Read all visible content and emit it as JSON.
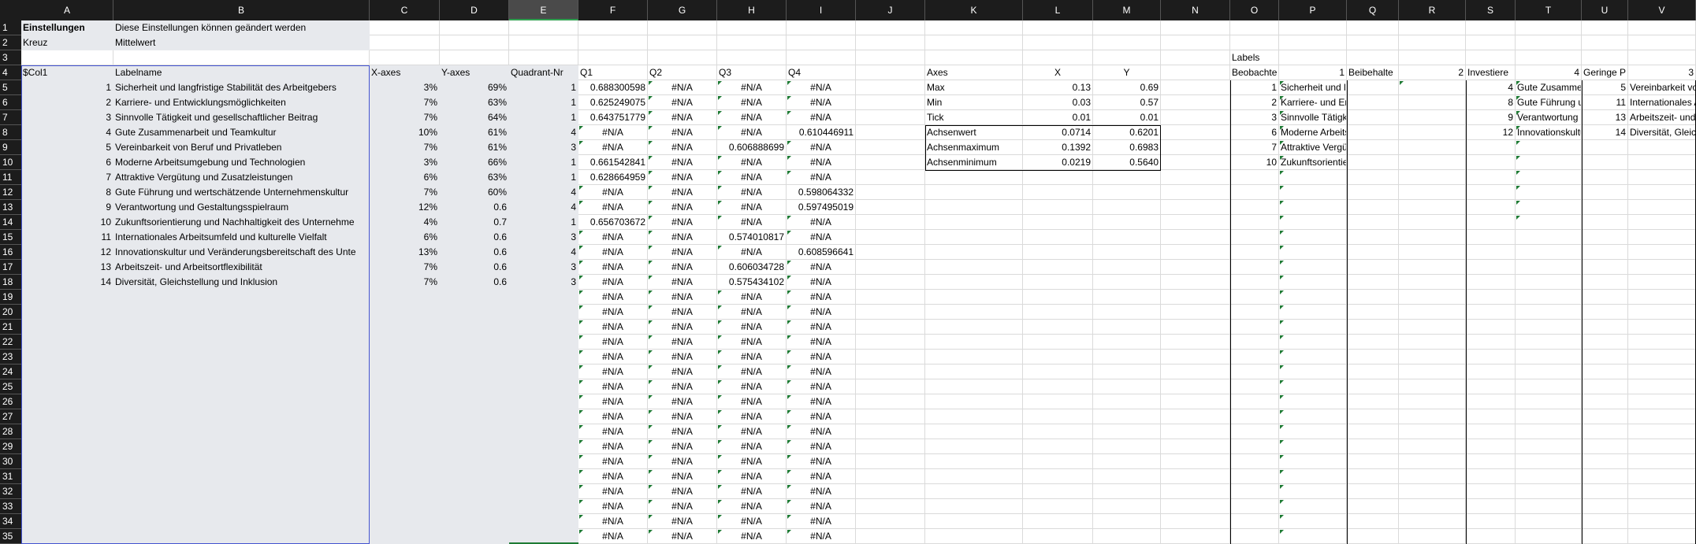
{
  "sheet": {
    "columns": [
      "A",
      "B",
      "C",
      "D",
      "E",
      "F",
      "G",
      "H",
      "I",
      "J",
      "K",
      "L",
      "M",
      "N",
      "O",
      "P",
      "Q",
      "R",
      "S",
      "T",
      "U",
      "V"
    ],
    "row_numbers": [
      1,
      2,
      3,
      4,
      5,
      6,
      7,
      8,
      9,
      10,
      11,
      12,
      13,
      14,
      15,
      16,
      17,
      18,
      19,
      20,
      21,
      22,
      23,
      24,
      25,
      26,
      27,
      28,
      29,
      30,
      31,
      32,
      33,
      34,
      35
    ],
    "rows": [
      {
        "A": "Einstellungen",
        "B": "Diese Einstellungen können geändert werden"
      },
      {
        "A": "Kreuz",
        "B": "Mittelwert"
      },
      {
        "O": "Labels"
      },
      {
        "A": "$Col1",
        "B": "Labelname",
        "C": "X-axes",
        "D": "Y-axes",
        "E": "Quadrant-Nr",
        "F": "Q1",
        "G": "Q2",
        "H": "Q3",
        "I": "Q4",
        "K": "Axes",
        "L": "X",
        "M": "Y",
        "O": "Beobachte",
        "P": "1",
        "Q": "Beibehalte",
        "R": "2",
        "S": "Investiere",
        "T": "4",
        "U": "Geringe P",
        "V": "3"
      },
      {
        "A": "1",
        "B": "Sicherheit und langfristige Stabilität des Arbeitgebers",
        "C": "3%",
        "D": "69%",
        "E": "1",
        "F": "0.688300598",
        "G": "#N/A",
        "H": "#N/A",
        "I": "#N/A",
        "K": "Max",
        "L": "0.13",
        "M": "0.69",
        "O": "1",
        "P": "Sicherheit und l",
        "S": "4",
        "T": "Gute Zusamme",
        "U": "5",
        "V": "Vereinbarkeit vo"
      },
      {
        "A": "2",
        "B": "Karriere- und Entwicklungsmöglichkeiten",
        "C": "7%",
        "D": "63%",
        "E": "1",
        "F": "0.625249075",
        "G": "#N/A",
        "H": "#N/A",
        "I": "#N/A",
        "K": "Min",
        "L": "0.03",
        "M": "0.57",
        "O": "2",
        "P": "Karriere- und Er",
        "S": "8",
        "T": "Gute Führung u",
        "U": "11",
        "V": "Internationales A"
      },
      {
        "A": "3",
        "B": "Sinnvolle Tätigkeit und gesellschaftlicher Beitrag",
        "C": "7%",
        "D": "64%",
        "E": "1",
        "F": "0.643751779",
        "G": "#N/A",
        "H": "#N/A",
        "I": "#N/A",
        "K": "Tick",
        "L": "0.01",
        "M": "0.01",
        "O": "3",
        "P": "Sinnvolle Tätigk",
        "S": "9",
        "T": "Verantwortung u",
        "U": "13",
        "V": "Arbeitszeit- und"
      },
      {
        "A": "4",
        "B": "Gute Zusammenarbeit und Teamkultur",
        "C": "10%",
        "D": "61%",
        "E": "4",
        "F": "#N/A",
        "G": "#N/A",
        "H": "#N/A",
        "I": "0.610446911",
        "K": "Achsenwert",
        "L": "0.0714",
        "M": "0.6201",
        "O": "6",
        "P": "Moderne Arbeits",
        "S": "12",
        "T": "Innovationskultu",
        "U": "14",
        "V": "Diversität, Gleich"
      },
      {
        "A": "5",
        "B": "Vereinbarkeit von Beruf und Privatleben",
        "C": "7%",
        "D": "61%",
        "E": "3",
        "F": "#N/A",
        "G": "#N/A",
        "H": "0.606888699",
        "I": "#N/A",
        "K": "Achsenmaximum",
        "L": "0.1392",
        "M": "0.6983",
        "O": "7",
        "P": "Attraktive Vergüt"
      },
      {
        "A": "6",
        "B": "Moderne Arbeitsumgebung und Technologien",
        "C": "3%",
        "D": "66%",
        "E": "1",
        "F": "0.661542841",
        "G": "#N/A",
        "H": "#N/A",
        "I": "#N/A",
        "K": "Achsenminimum",
        "L": "0.0219",
        "M": "0.5640",
        "O": "10",
        "P": "Zukunftsorientie"
      },
      {
        "A": "7",
        "B": "Attraktive Vergütung und Zusatzleistungen",
        "C": "6%",
        "D": "63%",
        "E": "1",
        "F": "0.628664959",
        "G": "#N/A",
        "H": "#N/A",
        "I": "#N/A"
      },
      {
        "A": "8",
        "B": "Gute Führung und wertschätzende Unternehmenskultur",
        "C": "7%",
        "D": "60%",
        "E": "4",
        "F": "#N/A",
        "G": "#N/A",
        "H": "#N/A",
        "I": "0.598064332"
      },
      {
        "A": "9",
        "B": "Verantwortung und Gestaltungsspielraum",
        "C": "12%",
        "D": "0.6",
        "E": "4",
        "F": "#N/A",
        "G": "#N/A",
        "H": "#N/A",
        "I": "0.597495019"
      },
      {
        "A": "10",
        "B": "Zukunftsorientierung und Nachhaltigkeit des Unternehme",
        "C": "4%",
        "D": "0.7",
        "E": "1",
        "F": "0.656703672",
        "G": "#N/A",
        "H": "#N/A",
        "I": "#N/A"
      },
      {
        "A": "11",
        "B": "Internationales Arbeitsumfeld und kulturelle Vielfalt",
        "C": "6%",
        "D": "0.6",
        "E": "3",
        "F": "#N/A",
        "G": "#N/A",
        "H": "0.574010817",
        "I": "#N/A"
      },
      {
        "A": "12",
        "B": "Innovationskultur und Veränderungsbereitschaft des Unte",
        "C": "13%",
        "D": "0.6",
        "E": "4",
        "F": "#N/A",
        "G": "#N/A",
        "H": "#N/A",
        "I": "0.608596641"
      },
      {
        "A": "13",
        "B": "Arbeitszeit- und Arbeitsortflexibilität",
        "C": "7%",
        "D": "0.6",
        "E": "3",
        "F": "#N/A",
        "G": "#N/A",
        "H": "0.606034728",
        "I": "#N/A"
      },
      {
        "A": "14",
        "B": "Diversität, Gleichstellung und Inklusion",
        "C": "7%",
        "D": "0.6",
        "E": "3",
        "F": "#N/A",
        "G": "#N/A",
        "H": "0.575434102",
        "I": "#N/A"
      },
      {
        "F": "#N/A",
        "G": "#N/A",
        "H": "#N/A",
        "I": "#N/A"
      },
      {
        "F": "#N/A",
        "G": "#N/A",
        "H": "#N/A",
        "I": "#N/A"
      },
      {
        "F": "#N/A",
        "G": "#N/A",
        "H": "#N/A",
        "I": "#N/A"
      },
      {
        "F": "#N/A",
        "G": "#N/A",
        "H": "#N/A",
        "I": "#N/A"
      },
      {
        "F": "#N/A",
        "G": "#N/A",
        "H": "#N/A",
        "I": "#N/A"
      },
      {
        "F": "#N/A",
        "G": "#N/A",
        "H": "#N/A",
        "I": "#N/A"
      },
      {
        "F": "#N/A",
        "G": "#N/A",
        "H": "#N/A",
        "I": "#N/A"
      },
      {
        "F": "#N/A",
        "G": "#N/A",
        "H": "#N/A",
        "I": "#N/A"
      },
      {
        "F": "#N/A",
        "G": "#N/A",
        "H": "#N/A",
        "I": "#N/A"
      },
      {
        "F": "#N/A",
        "G": "#N/A",
        "H": "#N/A",
        "I": "#N/A"
      },
      {
        "F": "#N/A",
        "G": "#N/A",
        "H": "#N/A",
        "I": "#N/A"
      },
      {
        "F": "#N/A",
        "G": "#N/A",
        "H": "#N/A",
        "I": "#N/A"
      },
      {
        "F": "#N/A",
        "G": "#N/A",
        "H": "#N/A",
        "I": "#N/A"
      },
      {
        "F": "#N/A",
        "G": "#N/A",
        "H": "#N/A",
        "I": "#N/A"
      },
      {
        "F": "#N/A",
        "G": "#N/A",
        "H": "#N/A",
        "I": "#N/A"
      },
      {
        "F": "#N/A",
        "G": "#N/A",
        "H": "#N/A",
        "I": "#N/A"
      },
      {
        "F": "#N/A",
        "G": "#N/A",
        "H": "#N/A",
        "I": "#N/A"
      }
    ]
  }
}
